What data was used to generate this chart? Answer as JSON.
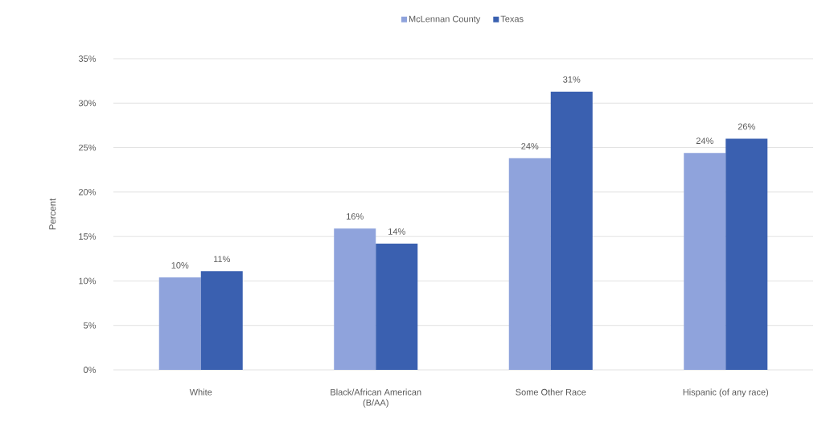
{
  "chart_data": {
    "type": "bar",
    "categories": [
      "White",
      "Black/African American (B/AA)",
      "Some Other Race",
      "Hispanic (of any race)"
    ],
    "series": [
      {
        "name": "McLennan County",
        "color": "#8fa3dc",
        "values": [
          10.4,
          15.9,
          23.8,
          24.4
        ],
        "value_labels": [
          "10%",
          "16%",
          "24%",
          "24%"
        ]
      },
      {
        "name": "Texas",
        "color": "#3a60b0",
        "values": [
          11.1,
          14.2,
          31.3,
          26.0
        ],
        "value_labels": [
          "11%",
          "14%",
          "31%",
          "26%"
        ]
      }
    ],
    "ylabel": "Percent",
    "ylim": [
      0,
      35
    ],
    "yticks": [
      {
        "value": 0,
        "label": "0%"
      },
      {
        "value": 5,
        "label": "5%"
      },
      {
        "value": 10,
        "label": "10%"
      },
      {
        "value": 15,
        "label": "15%"
      },
      {
        "value": 20,
        "label": "20%"
      },
      {
        "value": 25,
        "label": "25%"
      },
      {
        "value": 30,
        "label": "30%"
      },
      {
        "value": 35,
        "label": "35%"
      }
    ],
    "grid": "y",
    "legend": "top"
  }
}
